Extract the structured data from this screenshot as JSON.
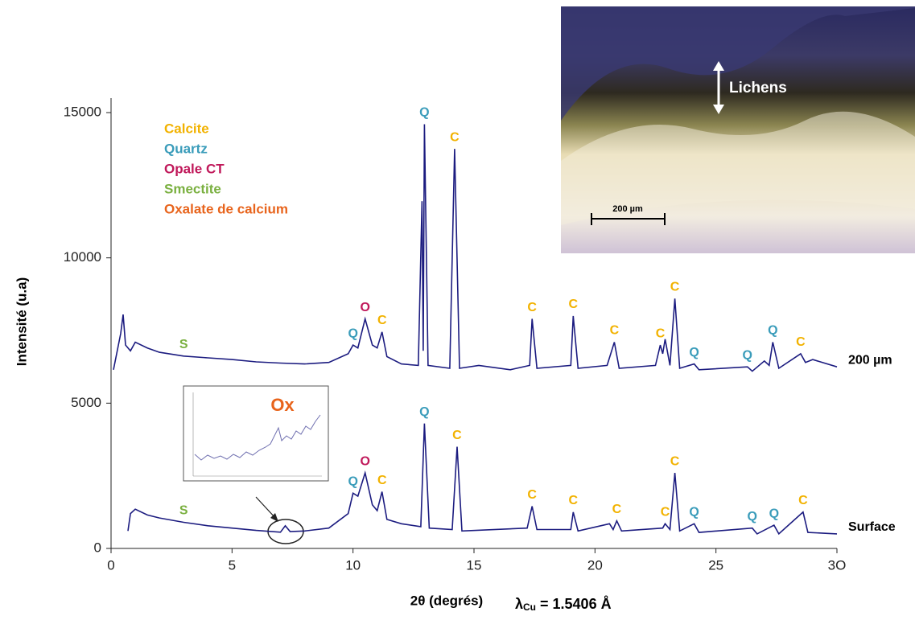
{
  "chart_data": {
    "type": "line",
    "y_label": "Intensité (u.a)",
    "x_label": "2θ (degrés)",
    "wavelength": {
      "symbol": "λ",
      "subscript": "Cu",
      "value": "= 1.5406 Å"
    },
    "xlim": [
      0,
      30
    ],
    "xticks": [
      0,
      5,
      10,
      15,
      20,
      25,
      {
        "value": 30,
        "label": "3O"
      }
    ],
    "ylim": [
      0,
      15000
    ],
    "yticks": [
      0,
      5000,
      10000,
      15000
    ],
    "legend": [
      {
        "name": "Calcite",
        "color": "#f2b200"
      },
      {
        "name": "Quartz",
        "color": "#3a9cba"
      },
      {
        "name": "Opale CT",
        "color": "#c0185a"
      },
      {
        "name": "Smectite",
        "color": "#7ab040"
      },
      {
        "name": "Oxalate de calcium",
        "color": "#e8641c"
      }
    ],
    "series": [
      {
        "name": "200 µm",
        "color": "#1c1c80",
        "x": [
          0.1,
          0.4,
          0.5,
          0.6,
          0.8,
          1.0,
          1.5,
          2,
          3,
          4,
          5,
          6,
          7,
          8,
          9,
          9.8,
          10.0,
          10.2,
          10.5,
          10.8,
          11.0,
          11.2,
          11.4,
          12,
          12.7,
          12.85,
          12.9,
          12.95,
          13.1,
          14.0,
          14.2,
          14.4,
          15.2,
          16.5,
          17.3,
          17.4,
          17.6,
          19.0,
          19.1,
          19.3,
          20.5,
          20.8,
          21.0,
          22.5,
          22.7,
          22.8,
          22.9,
          23.1,
          23.3,
          23.5,
          24.1,
          24.3,
          26.3,
          26.5,
          27.0,
          27.2,
          27.35,
          27.6,
          28.5,
          28.7,
          29,
          30
        ],
        "values": [
          6150,
          7400,
          8050,
          7000,
          6800,
          7100,
          6900,
          6750,
          6620,
          6560,
          6500,
          6420,
          6380,
          6350,
          6400,
          6700,
          7000,
          6900,
          7900,
          7000,
          6900,
          7450,
          6600,
          6350,
          6300,
          11950,
          6800,
          14600,
          6300,
          6200,
          13750,
          6200,
          6300,
          6150,
          6300,
          7900,
          6200,
          6300,
          8000,
          6200,
          6300,
          7100,
          6200,
          6300,
          7000,
          6700,
          7200,
          6300,
          8600,
          6200,
          6350,
          6150,
          6250,
          6100,
          6450,
          6300,
          7100,
          6200,
          6700,
          6400,
          6500,
          6250
        ],
        "peaks": [
          {
            "label": "S",
            "x": 3,
            "color": "#7ab040"
          },
          {
            "label": "Q",
            "x": 10.0,
            "color": "#3a9cba"
          },
          {
            "label": "O",
            "x": 10.5,
            "color": "#c0185a"
          },
          {
            "label": "C",
            "x": 11.2,
            "color": "#f2b200"
          },
          {
            "label": "Q",
            "x": 12.95,
            "color": "#3a9cba"
          },
          {
            "label": "C",
            "x": 14.2,
            "color": "#f2b200"
          },
          {
            "label": "C",
            "x": 17.4,
            "color": "#f2b200"
          },
          {
            "label": "C",
            "x": 19.1,
            "color": "#f2b200"
          },
          {
            "label": "C",
            "x": 20.8,
            "color": "#f2b200"
          },
          {
            "label": "C",
            "x": 22.7,
            "color": "#f2b200"
          },
          {
            "label": "C",
            "x": 23.3,
            "color": "#f2b200"
          },
          {
            "label": "Q",
            "x": 24.1,
            "color": "#3a9cba"
          },
          {
            "label": "Q",
            "x": 26.3,
            "color": "#3a9cba"
          },
          {
            "label": "Q",
            "x": 27.35,
            "color": "#3a9cba"
          },
          {
            "label": "C",
            "x": 28.5,
            "color": "#f2b200"
          }
        ]
      },
      {
        "name": "Surface",
        "color": "#1c1c80",
        "x": [
          0.7,
          0.8,
          1.0,
          1.5,
          2,
          3,
          4,
          5,
          6,
          7,
          7.2,
          7.4,
          8,
          9,
          9.8,
          10.0,
          10.2,
          10.5,
          10.8,
          11.0,
          11.2,
          11.4,
          12,
          12.8,
          12.95,
          13.15,
          14.1,
          14.3,
          14.5,
          17.2,
          17.4,
          17.6,
          19.0,
          19.1,
          19.3,
          20.6,
          20.75,
          20.9,
          21.1,
          22.8,
          22.9,
          23.1,
          23.3,
          23.5,
          24.1,
          24.3,
          26.5,
          26.7,
          27.4,
          27.6,
          28.6,
          28.8,
          30
        ],
        "values": [
          600,
          1200,
          1350,
          1150,
          1050,
          900,
          780,
          700,
          620,
          560,
          780,
          580,
          600,
          700,
          1200,
          1900,
          1800,
          2600,
          1500,
          1300,
          1950,
          1000,
          850,
          750,
          4300,
          700,
          650,
          3500,
          600,
          700,
          1450,
          650,
          650,
          1250,
          600,
          850,
          650,
          950,
          600,
          700,
          850,
          650,
          2600,
          600,
          850,
          550,
          700,
          500,
          800,
          500,
          1250,
          550,
          500
        ],
        "peaks": [
          {
            "label": "S",
            "x": 3,
            "color": "#7ab040"
          },
          {
            "label": "Q",
            "x": 10.0,
            "color": "#3a9cba"
          },
          {
            "label": "O",
            "x": 10.5,
            "color": "#c0185a"
          },
          {
            "label": "C",
            "x": 11.2,
            "color": "#f2b200"
          },
          {
            "label": "Q",
            "x": 12.95,
            "color": "#3a9cba"
          },
          {
            "label": "C",
            "x": 14.3,
            "color": "#f2b200"
          },
          {
            "label": "C",
            "x": 17.4,
            "color": "#f2b200"
          },
          {
            "label": "C",
            "x": 19.1,
            "color": "#f2b200"
          },
          {
            "label": "C",
            "x": 20.9,
            "color": "#f2b200"
          },
          {
            "label": "C",
            "x": 22.9,
            "color": "#f2b200"
          },
          {
            "label": "C",
            "x": 23.3,
            "color": "#f2b200"
          },
          {
            "label": "Q",
            "x": 24.1,
            "color": "#3a9cba"
          },
          {
            "label": "Q",
            "x": 26.5,
            "color": "#3a9cba"
          },
          {
            "label": "Q",
            "x": 27.4,
            "color": "#3a9cba"
          },
          {
            "label": "C",
            "x": 28.6,
            "color": "#f2b200"
          }
        ]
      }
    ],
    "zoom_label": "Ox",
    "photo": {
      "label": "Lichens",
      "scale": "200 µm"
    }
  }
}
